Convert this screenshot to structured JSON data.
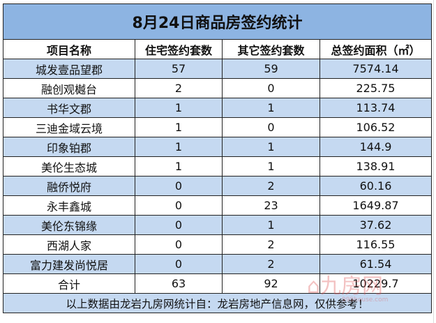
{
  "title": "8月24日商品房签约统计",
  "headers": [
    "项目名称",
    "住宅签约套数",
    "其它签约套数",
    "总签约面积（㎡）"
  ],
  "rows": [
    [
      "城发壹品望郡",
      "57",
      "59",
      "7574.14"
    ],
    [
      "融创观樾台",
      "2",
      "0",
      "225.75"
    ],
    [
      "书华文郡",
      "1",
      "1",
      "113.74"
    ],
    [
      "三迪金域云境",
      "1",
      "0",
      "106.52"
    ],
    [
      "印象铂郡",
      "1",
      "1",
      "144.9"
    ],
    [
      "美伦生态城",
      "1",
      "1",
      "138.91"
    ],
    [
      "融侨悦府",
      "0",
      "2",
      "60.16"
    ],
    [
      "永丰鑫城",
      "0",
      "23",
      "1649.87"
    ],
    [
      "美伦东锦缘",
      "0",
      "1",
      "37.62"
    ],
    [
      "西湖人家",
      "0",
      "2",
      "116.55"
    ],
    [
      "富力建发尚悦居",
      "0",
      "2",
      "61.54"
    ]
  ],
  "total": [
    "合计",
    "63",
    "92",
    "10229.7"
  ],
  "footer": "以上数据由龙岩九房网统计自：龙岩房地产信息网，仅供参考！",
  "watermark": {
    "text": "九房网",
    "url": "999house.com"
  },
  "colors": {
    "title_bg": "#8db4e2",
    "band_bg": "#c5d9f1"
  }
}
